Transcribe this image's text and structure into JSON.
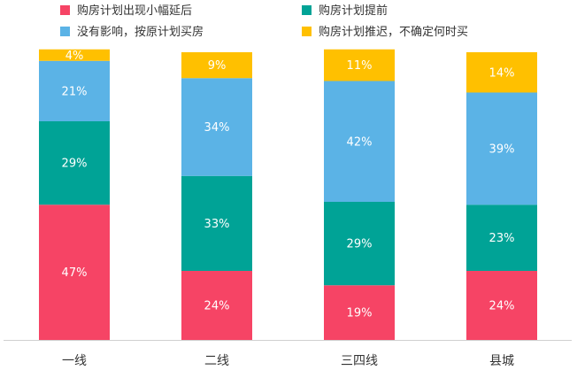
{
  "chart_data": {
    "type": "bar",
    "stacked": true,
    "percent": true,
    "title": "",
    "xlabel": "",
    "ylabel": "",
    "ylim": [
      0,
      100
    ],
    "grid": false,
    "legend_position": "top",
    "categories": [
      "一线",
      "二线",
      "三四线",
      "县城"
    ],
    "series": [
      {
        "name": "购房计划出现小幅延后",
        "color": "#F64465",
        "values": [
          47,
          24,
          19,
          24
        ]
      },
      {
        "name": "购房计划提前",
        "color": "#00A396",
        "values": [
          29,
          33,
          29,
          23
        ]
      },
      {
        "name": "没有影响，按原计划买房",
        "color": "#5BB3E6",
        "values": [
          21,
          34,
          42,
          39
        ]
      },
      {
        "name": "购房计划推迟，不确定何时买",
        "color": "#FFC000",
        "values": [
          4,
          9,
          11,
          14
        ]
      }
    ],
    "label_suffix": "%",
    "label_color": "#FFFFFF",
    "axis_color": "#D0D0D0",
    "text_color": "#333333"
  }
}
